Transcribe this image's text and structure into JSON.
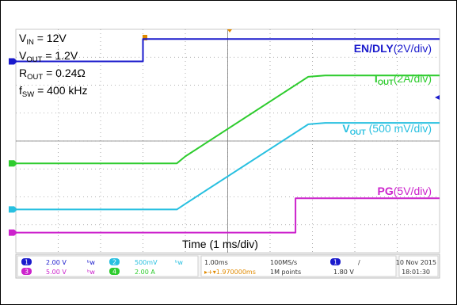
{
  "conditions": {
    "vin": {
      "symbol": "V",
      "sub": "IN",
      "value": " = 12V"
    },
    "vout": {
      "symbol": "V",
      "sub": "OUT",
      "value": " = 1.2V"
    },
    "rout": {
      "symbol": "R",
      "sub": "OUT",
      "value": " = 0.24Ω"
    },
    "fsw": {
      "symbol": "f",
      "sub": "SW",
      "value": " = 400 kHz"
    }
  },
  "channel_labels": {
    "en": {
      "name": "EN/DLY",
      "scale": "(2V/div)",
      "color": "#1a1acc"
    },
    "iout": {
      "name": "I",
      "sub": "OUT",
      "scale": "(2A/div)",
      "color": "#2ecc2e"
    },
    "vout": {
      "name": "V",
      "sub": "OUT",
      "scale": " (500 mV/div)",
      "color": "#28c0e0"
    },
    "pg": {
      "name": "PG",
      "scale": "(5V/div)",
      "color": "#cc22cc"
    }
  },
  "time_axis_label": "Time (1 ms/div)",
  "status_bar": {
    "ch1": {
      "num": "1",
      "scale": "2.00 V",
      "color": "#1a1acc"
    },
    "ch2": {
      "num": "2",
      "scale": "500mV",
      "color": "#28c0e0"
    },
    "ch3": {
      "num": "3",
      "scale": "5.00 V",
      "color": "#cc22cc"
    },
    "ch4": {
      "num": "4",
      "scale": "2.00 A",
      "color": "#2ecc2e"
    },
    "timebase": "1.00ms",
    "trigger_pos": "▸+▾1.970000ms",
    "sample_rate": "100MS/s",
    "record_length": "1M points",
    "trigger_channel": "1",
    "trigger_slope": "/",
    "trigger_level": "1.80 V",
    "date": "10 Nov 2015",
    "time": "18:01:30"
  },
  "chart_data": {
    "type": "line",
    "x_unit": "ms",
    "xlim": [
      0,
      10
    ],
    "y_unit": "div",
    "ylim": [
      0,
      8
    ],
    "series": [
      {
        "name": "EN/DLY",
        "color": "#1a1acc",
        "x": [
          0,
          3.0,
          3.0,
          10
        ],
        "y": [
          6.85,
          6.85,
          7.65,
          7.65
        ]
      },
      {
        "name": "IOUT",
        "color": "#2ecc2e",
        "x": [
          0,
          3.8,
          4.0,
          6.9,
          7.3,
          10
        ],
        "y": [
          3.2,
          3.2,
          3.45,
          6.3,
          6.35,
          6.35
        ]
      },
      {
        "name": "VOUT",
        "color": "#28c0e0",
        "x": [
          0,
          3.8,
          4.0,
          6.9,
          7.3,
          10
        ],
        "y": [
          1.55,
          1.55,
          1.75,
          4.6,
          4.65,
          4.65
        ]
      },
      {
        "name": "PG",
        "color": "#cc22cc",
        "x": [
          0,
          6.6,
          6.6,
          10
        ],
        "y": [
          0.72,
          0.72,
          1.95,
          1.95
        ]
      }
    ]
  }
}
